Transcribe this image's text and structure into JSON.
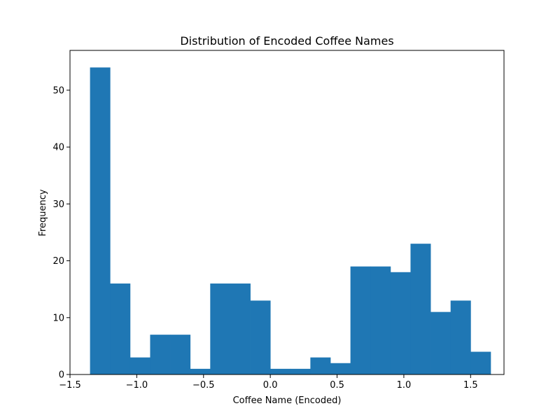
{
  "chart_data": {
    "type": "bar",
    "subtype": "histogram",
    "title": "Distribution of Encoded Coffee Names",
    "xlabel": "Coffee Name (Encoded)",
    "ylabel": "Frequency",
    "bar_color": "#1f77b4",
    "xlim": [
      -1.5,
      1.75
    ],
    "ylim": [
      0,
      57
    ],
    "xticks": [
      -1.5,
      -1.0,
      -0.5,
      0.0,
      0.5,
      1.0,
      1.5
    ],
    "xtick_labels": [
      "−1.5",
      "−1.0",
      "−0.5",
      "0.0",
      "0.5",
      "1.0",
      "1.5"
    ],
    "yticks": [
      0,
      10,
      20,
      30,
      40,
      50
    ],
    "ytick_labels": [
      "0",
      "10",
      "20",
      "30",
      "40",
      "50"
    ],
    "bin_edges": [
      -1.35,
      -1.2,
      -1.05,
      -0.9,
      -0.75,
      -0.6,
      -0.45,
      -0.3,
      -0.15,
      0.0,
      0.15,
      0.3,
      0.45,
      0.6,
      0.75,
      0.9,
      1.05,
      1.2,
      1.35,
      1.5,
      1.65
    ],
    "counts": [
      54,
      16,
      3,
      7,
      7,
      1,
      16,
      16,
      13,
      1,
      1,
      3,
      2,
      19,
      19,
      18,
      23,
      11,
      13,
      4
    ],
    "grid": false,
    "legend": "none"
  }
}
